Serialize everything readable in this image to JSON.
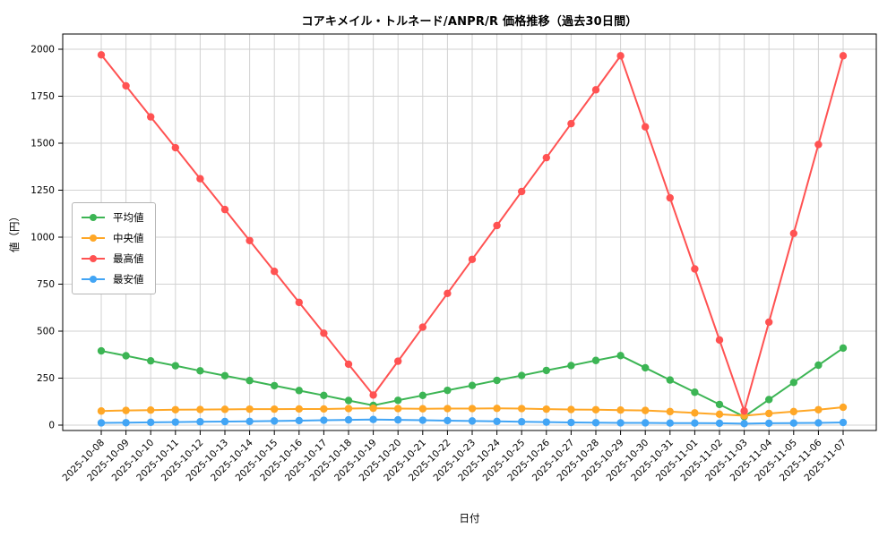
{
  "chart_data": {
    "type": "line",
    "title": "コアキメイル・トルネード/ANPR/R 価格推移（過去30日間）",
    "xlabel": "日付",
    "ylabel": "値（円）",
    "ylim": [
      0,
      2000
    ],
    "yticks": [
      0,
      250,
      500,
      750,
      1000,
      1250,
      1500,
      1750,
      2000
    ],
    "grid": true,
    "legend_position": "center-left",
    "x": [
      "2025-10-08",
      "2025-10-09",
      "2025-10-10",
      "2025-10-11",
      "2025-10-12",
      "2025-10-13",
      "2025-10-14",
      "2025-10-15",
      "2025-10-16",
      "2025-10-17",
      "2025-10-18",
      "2025-10-19",
      "2025-10-20",
      "2025-10-21",
      "2025-10-22",
      "2025-10-23",
      "2025-10-24",
      "2025-10-25",
      "2025-10-26",
      "2025-10-27",
      "2025-10-28",
      "2025-10-29",
      "2025-10-30",
      "2025-10-31",
      "2025-11-01",
      "2025-11-02",
      "2025-11-03",
      "2025-11-04",
      "2025-11-05",
      "2025-11-06",
      "2025-11-07"
    ],
    "series": [
      {
        "name": "平均値",
        "color": "#3cb554",
        "values": [
          395,
          369,
          342,
          316,
          289,
          263,
          237,
          210,
          184,
          158,
          131,
          105,
          132,
          158,
          185,
          211,
          238,
          264,
          291,
          317,
          344,
          370,
          305,
          240,
          175,
          110,
          45,
          136,
          227,
          319,
          410
        ]
      },
      {
        "name": "中央値",
        "color": "#ffa726",
        "values": [
          75,
          78,
          80,
          82,
          83,
          84,
          85,
          85,
          86,
          86,
          88,
          90,
          88,
          87,
          88,
          88,
          89,
          88,
          85,
          83,
          82,
          80,
          78,
          72,
          65,
          58,
          50,
          62,
          72,
          82,
          95
        ]
      },
      {
        "name": "最高値",
        "color": "#ff5252",
        "values": [
          1970,
          1805,
          1640,
          1476,
          1311,
          1147,
          982,
          818,
          653,
          489,
          324,
          160,
          340,
          521,
          701,
          882,
          1062,
          1243,
          1423,
          1604,
          1784,
          1965,
          1587,
          1209,
          831,
          453,
          75,
          548,
          1020,
          1493,
          1965
        ]
      },
      {
        "name": "最安値",
        "color": "#42a5f5",
        "values": [
          12,
          13,
          15,
          16,
          18,
          19,
          20,
          22,
          24,
          26,
          28,
          30,
          28,
          26,
          24,
          22,
          20,
          18,
          16,
          14,
          13,
          12,
          12,
          11,
          11,
          10,
          8,
          10,
          11,
          12,
          14
        ]
      }
    ]
  }
}
